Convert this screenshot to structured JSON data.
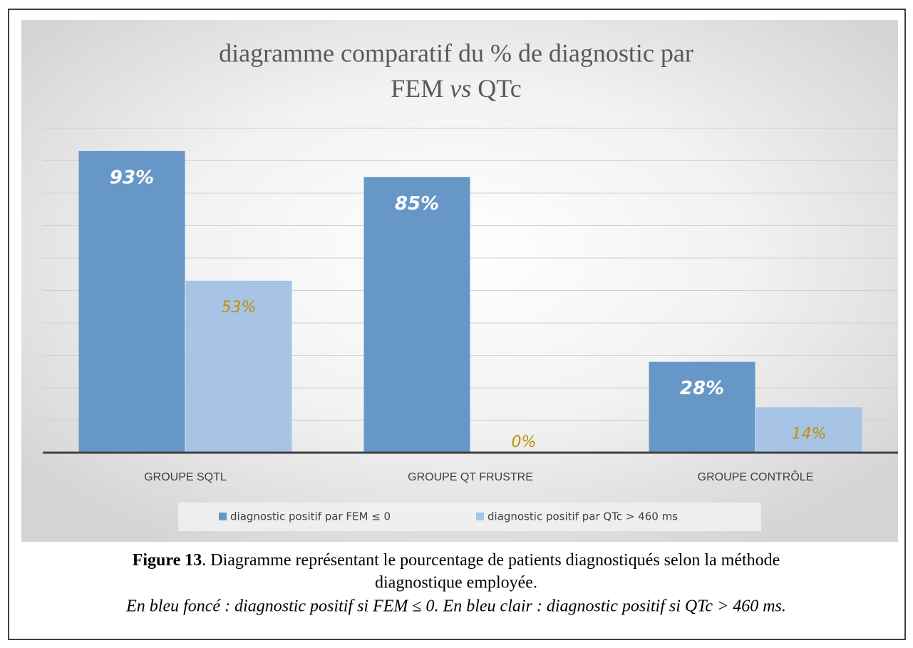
{
  "chart_data": {
    "type": "bar",
    "title": {
      "line1": "diagramme comparatif du % de diagnostic par",
      "line2": [
        "FEM",
        "vs",
        "QTc"
      ]
    },
    "categories": [
      "GROUPE SQTL",
      "GROUPE QT FRUSTRE",
      "GROUPE CONTRÔLE"
    ],
    "series": [
      {
        "name": "diagnostic positif par FEM ≤ 0",
        "color": "#6797c6",
        "label_color": "#ffffff",
        "values": [
          93,
          85,
          28
        ],
        "value_labels": [
          "93%",
          "85%",
          "28%"
        ]
      },
      {
        "name": "diagnostic positif par QTc > 460 ms",
        "color": "#a7c3e6",
        "label_color": "#bf9000",
        "values": [
          53,
          0,
          14
        ],
        "value_labels": [
          "53%",
          "0%",
          "14%"
        ]
      }
    ],
    "ylim": [
      0,
      100
    ],
    "yticks": [
      0,
      10,
      20,
      30,
      40,
      50,
      60,
      70,
      80,
      90,
      100
    ],
    "grid": true,
    "legend": "bottom"
  },
  "caption": {
    "label": "Figure 13",
    "text": [
      ". Diagramme représentant le pourcentage de patients diagnostiqués selon la méthode",
      "diagnostique employée."
    ],
    "note": "En bleu foncé : diagnostic positif si FEM ≤ 0. En bleu clair : diagnostic positif si QTc > 460 ms."
  }
}
